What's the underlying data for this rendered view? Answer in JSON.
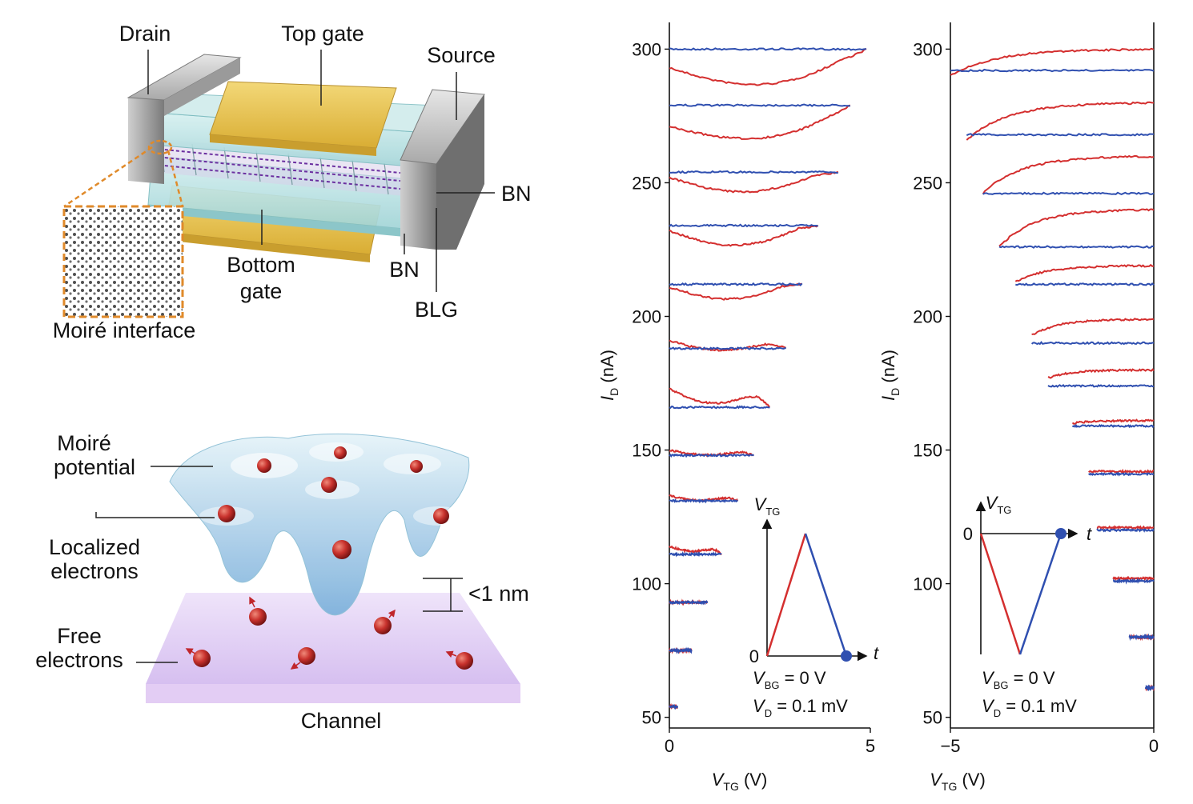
{
  "device": {
    "labels": {
      "drain": "Drain",
      "top_gate": "Top gate",
      "source": "Source",
      "bn_top": "BN",
      "bottom_gate_1": "Bottom",
      "bottom_gate_2": "gate",
      "bn_bottom": "BN",
      "blg": "BLG",
      "moire_interface": "Moiré interface"
    },
    "colors": {
      "gold": "#e7c453",
      "metal": "#8a8a8a",
      "bn": "#a9dcdc",
      "lattice": "#6b2fa0",
      "leader": "#e08a2a"
    }
  },
  "moire": {
    "labels": {
      "potential_1": "Moiré",
      "potential_2": "potential",
      "localized_1": "Localized",
      "localized_2": "electrons",
      "free_1": "Free",
      "free_2": "electrons",
      "distance": "<1 nm",
      "channel": "Channel"
    },
    "colors": {
      "electron": "#c0262b",
      "channel": "#dcc8ef",
      "potential": "#a9d6ea"
    }
  },
  "chart_data": [
    {
      "type": "line",
      "panel": "left",
      "xlabel_main": "V",
      "xlabel_sub": "TG",
      "xlabel_unit": "(V)",
      "ylabel_main": "I",
      "ylabel_sub": "D",
      "ylabel_unit": "(nA)",
      "xlim": [
        0,
        5
      ],
      "ylim": [
        46,
        310
      ],
      "xticks": [
        0,
        5
      ],
      "yticks": [
        50,
        100,
        150,
        200,
        250,
        300
      ],
      "series_colors": {
        "up": "#d42f2f",
        "down": "#2f4fb0"
      },
      "loops": [
        {
          "xmax": 4.9,
          "blue": 300,
          "red_start": 293,
          "red_dip": 286
        },
        {
          "xmax": 4.5,
          "blue": 279,
          "red_start": 271,
          "red_dip": 266
        },
        {
          "xmax": 4.2,
          "blue": 254,
          "red_start": 252,
          "red_dip": 246
        },
        {
          "xmax": 3.7,
          "blue": 234,
          "red_start": 232,
          "red_dip": 226
        },
        {
          "xmax": 3.3,
          "blue": 212,
          "red_start": 211,
          "red_dip": 206
        },
        {
          "xmax": 2.9,
          "blue": 188,
          "red_start": 191,
          "red_dip": 187
        },
        {
          "xmax": 2.5,
          "blue": 166,
          "red_start": 173,
          "red_dip": 167
        },
        {
          "xmax": 2.1,
          "blue": 148,
          "red_start": 150,
          "red_dip": 148
        },
        {
          "xmax": 1.7,
          "blue": 131,
          "red_start": 133,
          "red_dip": 131
        },
        {
          "xmax": 1.3,
          "blue": 111,
          "red_start": 114,
          "red_dip": 112
        },
        {
          "xmax": 0.95,
          "blue": 93,
          "red_start": 93,
          "red_dip": 93
        },
        {
          "xmax": 0.55,
          "blue": 75,
          "red_start": 75,
          "red_dip": 75
        },
        {
          "xmax": 0.2,
          "blue": 54,
          "red_start": 54,
          "red_dip": 54
        }
      ],
      "inset": {
        "axis_y_main": "V",
        "axis_y_sub": "TG",
        "axis_x": "t",
        "origin": "0",
        "vbg_main": "V",
        "vbg_sub": "BG",
        "vbg_value": "= 0 V",
        "vd_main": "V",
        "vd_sub": "D",
        "vd_value": "= 0.1 mV"
      }
    },
    {
      "type": "line",
      "panel": "right",
      "xlabel_main": "V",
      "xlabel_sub": "TG",
      "xlabel_unit": "(V)",
      "ylabel_main": "I",
      "ylabel_sub": "D",
      "ylabel_unit": "(nA)",
      "xlim": [
        -5,
        0
      ],
      "ylim": [
        46,
        310
      ],
      "xticks": [
        -5,
        0
      ],
      "xtick_labels": [
        "−5",
        "0"
      ],
      "yticks": [
        50,
        100,
        150,
        200,
        250,
        300
      ],
      "series_colors": {
        "up": "#d42f2f",
        "down": "#2f4fb0"
      },
      "loops": [
        {
          "xmin": -5.0,
          "blue": 292,
          "red_start": 290,
          "red_end": 300
        },
        {
          "xmin": -4.6,
          "blue": 268,
          "red_start": 266,
          "red_end": 280
        },
        {
          "xmin": -4.2,
          "blue": 246,
          "red_start": 246,
          "red_end": 260
        },
        {
          "xmin": -3.8,
          "blue": 226,
          "red_start": 226,
          "red_end": 240
        },
        {
          "xmin": -3.4,
          "blue": 212,
          "red_start": 213,
          "red_end": 219
        },
        {
          "xmin": -3.0,
          "blue": 190,
          "red_start": 193,
          "red_end": 199
        },
        {
          "xmin": -2.6,
          "blue": 174,
          "red_start": 177,
          "red_end": 180
        },
        {
          "xmin": -2.0,
          "blue": 159,
          "red_start": 160,
          "red_end": 161
        },
        {
          "xmin": -1.6,
          "blue": 141,
          "red_start": 142,
          "red_end": 142
        },
        {
          "xmin": -1.4,
          "blue": 120,
          "red_start": 121,
          "red_end": 121
        },
        {
          "xmin": -1.0,
          "blue": 101,
          "red_start": 102,
          "red_end": 102
        },
        {
          "xmin": -0.6,
          "blue": 80,
          "red_start": 80,
          "red_end": 80
        },
        {
          "xmin": -0.2,
          "blue": 61,
          "red_start": 61,
          "red_end": 61
        }
      ],
      "inset": {
        "axis_y_main": "V",
        "axis_y_sub": "TG",
        "axis_x": "t",
        "origin": "0",
        "vbg_main": "V",
        "vbg_sub": "BG",
        "vbg_value": "= 0 V",
        "vd_main": "V",
        "vd_sub": "D",
        "vd_value": "= 0.1 mV"
      }
    }
  ]
}
